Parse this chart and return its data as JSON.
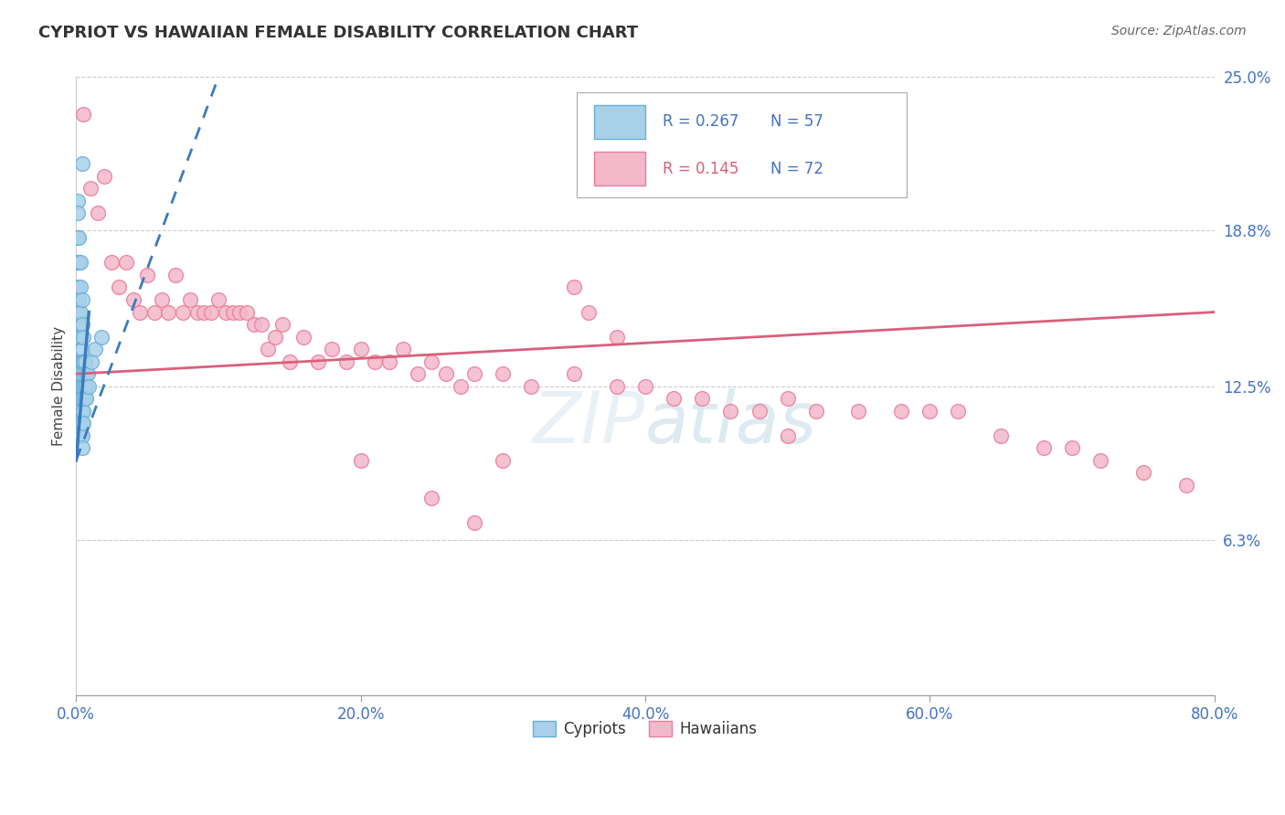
{
  "title": "CYPRIOT VS HAWAIIAN FEMALE DISABILITY CORRELATION CHART",
  "source": "Source: ZipAtlas.com",
  "ylabel": "Female Disability",
  "xlim": [
    0.0,
    0.8
  ],
  "ylim": [
    0.0,
    0.25
  ],
  "yticks": [
    0.063,
    0.125,
    0.188,
    0.25
  ],
  "ytick_labels": [
    "6.3%",
    "12.5%",
    "18.8%",
    "25.0%"
  ],
  "xticks": [
    0.0,
    0.2,
    0.4,
    0.6,
    0.8
  ],
  "xtick_labels": [
    "0.0%",
    "20.0%",
    "40.0%",
    "60.0%",
    "80.0%"
  ],
  "cypriot_color": "#a8d0e8",
  "hawaiian_color": "#f4b8cb",
  "cypriot_edge": "#6aaed6",
  "hawaiian_edge": "#e87d9b",
  "trend_cypriot_color": "#3a7bbf",
  "trend_hawaiian_color": "#d9607a",
  "R_cypriot": "0.267",
  "N_cypriot": "57",
  "R_hawaiian": "0.145",
  "N_hawaiian": "72",
  "legend_label_cypriot": "Cypriots",
  "legend_label_hawaiian": "Hawaiians",
  "watermark": "ZIPatlas",
  "cypriot_x": [
    0.004,
    0.001,
    0.001,
    0.001,
    0.001,
    0.001,
    0.001,
    0.001,
    0.001,
    0.002,
    0.002,
    0.002,
    0.002,
    0.002,
    0.002,
    0.002,
    0.002,
    0.002,
    0.002,
    0.003,
    0.003,
    0.003,
    0.003,
    0.003,
    0.003,
    0.003,
    0.003,
    0.003,
    0.003,
    0.004,
    0.004,
    0.004,
    0.004,
    0.004,
    0.004,
    0.004,
    0.004,
    0.004,
    0.004,
    0.005,
    0.005,
    0.005,
    0.005,
    0.005,
    0.005,
    0.005,
    0.006,
    0.006,
    0.006,
    0.007,
    0.007,
    0.007,
    0.008,
    0.009,
    0.011,
    0.013,
    0.018
  ],
  "cypriot_y": [
    0.215,
    0.2,
    0.195,
    0.185,
    0.175,
    0.165,
    0.155,
    0.145,
    0.135,
    0.185,
    0.175,
    0.16,
    0.15,
    0.145,
    0.135,
    0.13,
    0.125,
    0.12,
    0.11,
    0.175,
    0.165,
    0.155,
    0.145,
    0.135,
    0.13,
    0.125,
    0.12,
    0.11,
    0.105,
    0.16,
    0.15,
    0.14,
    0.135,
    0.125,
    0.12,
    0.115,
    0.11,
    0.105,
    0.1,
    0.145,
    0.135,
    0.13,
    0.125,
    0.12,
    0.115,
    0.11,
    0.135,
    0.125,
    0.12,
    0.13,
    0.125,
    0.12,
    0.13,
    0.125,
    0.135,
    0.14,
    0.145
  ],
  "hawaiian_x": [
    0.005,
    0.01,
    0.015,
    0.02,
    0.025,
    0.03,
    0.035,
    0.04,
    0.045,
    0.05,
    0.055,
    0.06,
    0.065,
    0.07,
    0.075,
    0.08,
    0.085,
    0.09,
    0.095,
    0.1,
    0.105,
    0.11,
    0.115,
    0.12,
    0.125,
    0.13,
    0.135,
    0.14,
    0.145,
    0.15,
    0.16,
    0.17,
    0.18,
    0.19,
    0.2,
    0.21,
    0.22,
    0.23,
    0.24,
    0.25,
    0.26,
    0.27,
    0.28,
    0.3,
    0.32,
    0.35,
    0.38,
    0.4,
    0.42,
    0.44,
    0.46,
    0.48,
    0.5,
    0.52,
    0.55,
    0.58,
    0.6,
    0.62,
    0.65,
    0.68,
    0.7,
    0.72,
    0.75,
    0.78,
    0.35,
    0.36,
    0.38,
    0.5,
    0.3,
    0.2,
    0.25,
    0.28
  ],
  "hawaiian_y": [
    0.235,
    0.205,
    0.195,
    0.21,
    0.175,
    0.165,
    0.175,
    0.16,
    0.155,
    0.17,
    0.155,
    0.16,
    0.155,
    0.17,
    0.155,
    0.16,
    0.155,
    0.155,
    0.155,
    0.16,
    0.155,
    0.155,
    0.155,
    0.155,
    0.15,
    0.15,
    0.14,
    0.145,
    0.15,
    0.135,
    0.145,
    0.135,
    0.14,
    0.135,
    0.14,
    0.135,
    0.135,
    0.14,
    0.13,
    0.135,
    0.13,
    0.125,
    0.13,
    0.13,
    0.125,
    0.13,
    0.125,
    0.125,
    0.12,
    0.12,
    0.115,
    0.115,
    0.12,
    0.115,
    0.115,
    0.115,
    0.115,
    0.115,
    0.105,
    0.1,
    0.1,
    0.095,
    0.09,
    0.085,
    0.165,
    0.155,
    0.145,
    0.105,
    0.095,
    0.095,
    0.08,
    0.07
  ],
  "trend_haw_x0": 0.0,
  "trend_haw_x1": 0.8,
  "trend_haw_y0": 0.13,
  "trend_haw_y1": 0.155,
  "trend_cyp_dash_x0": 0.0,
  "trend_cyp_dash_x1": 0.1,
  "trend_cyp_dash_y0": 0.095,
  "trend_cyp_dash_y1": 0.25,
  "trend_cyp_solid_x0": 0.0,
  "trend_cyp_solid_x1": 0.009,
  "trend_cyp_solid_y0": 0.095,
  "trend_cyp_solid_y1": 0.155
}
